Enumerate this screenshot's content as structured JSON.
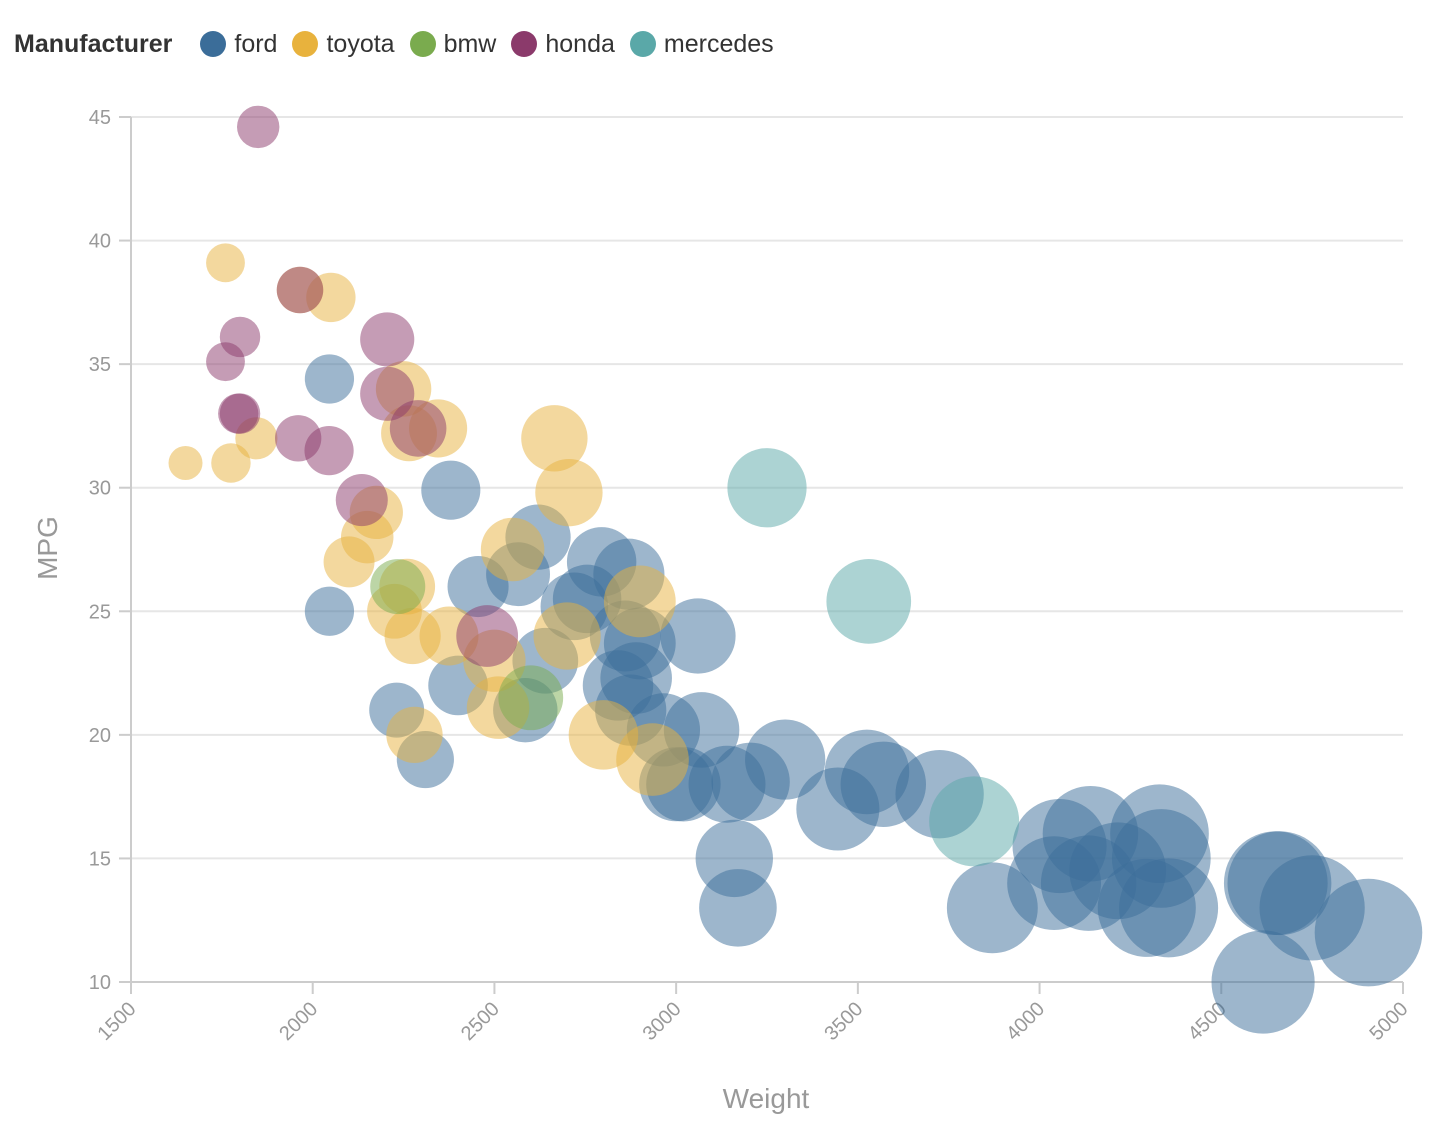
{
  "legend": {
    "title": "Manufacturer"
  },
  "chart_data": {
    "type": "scatter",
    "title": "",
    "xlabel": "Weight",
    "ylabel": "MPG",
    "xlim": [
      1500,
      5000
    ],
    "ylim": [
      10,
      45
    ],
    "x_ticks": [
      1500,
      2000,
      2500,
      3000,
      3500,
      4000,
      4500,
      5000
    ],
    "y_ticks": [
      10,
      15,
      20,
      25,
      30,
      35,
      40,
      45
    ],
    "grid": true,
    "legend_position": "top-left",
    "size_encoding": "weight",
    "series": [
      {
        "name": "ford",
        "color": "#3b6d99",
        "points": [
          [
            2046,
            34.4
          ],
          [
            2046,
            25
          ],
          [
            2231,
            21
          ],
          [
            2310,
            19
          ],
          [
            2380,
            29.9
          ],
          [
            2400,
            22
          ],
          [
            2455,
            26
          ],
          [
            2565,
            26.5
          ],
          [
            2585,
            21
          ],
          [
            2620,
            28
          ],
          [
            2640,
            23
          ],
          [
            2720,
            25.2
          ],
          [
            2755,
            25.5
          ],
          [
            2795,
            27
          ],
          [
            2870,
            26.5
          ],
          [
            2860,
            24
          ],
          [
            2840,
            22
          ],
          [
            2875,
            21
          ],
          [
            2890,
            22.3
          ],
          [
            2900,
            23.7
          ],
          [
            2965,
            20.2
          ],
          [
            3000,
            18
          ],
          [
            3020,
            18
          ],
          [
            3060,
            24
          ],
          [
            3070,
            20.2
          ],
          [
            3140,
            18
          ],
          [
            3160,
            15
          ],
          [
            3170,
            13
          ],
          [
            3205,
            18.1
          ],
          [
            3300,
            19
          ],
          [
            3445,
            17
          ],
          [
            3525,
            18.5
          ],
          [
            3570,
            18
          ],
          [
            3725,
            17.6
          ],
          [
            3870,
            13
          ],
          [
            4040,
            14
          ],
          [
            4055,
            15.5
          ],
          [
            4135,
            14
          ],
          [
            4140,
            16
          ],
          [
            4215,
            14.5
          ],
          [
            4295,
            13
          ],
          [
            4330,
            16
          ],
          [
            4335,
            15
          ],
          [
            4355,
            13
          ],
          [
            4650,
            14
          ],
          [
            4660,
            14
          ],
          [
            4615,
            10
          ],
          [
            4750,
            13
          ],
          [
            4905,
            12
          ]
        ]
      },
      {
        "name": "toyota",
        "color": "#e8b23d",
        "points": [
          [
            1650,
            31
          ],
          [
            1760,
            39.1
          ],
          [
            1775,
            31
          ],
          [
            1845,
            32
          ],
          [
            1965,
            38
          ],
          [
            2050,
            37.7
          ],
          [
            2100,
            27
          ],
          [
            2150,
            28
          ],
          [
            2175,
            29
          ],
          [
            2225,
            25
          ],
          [
            2250,
            34
          ],
          [
            2265,
            32.2
          ],
          [
            2260,
            26
          ],
          [
            2275,
            24
          ],
          [
            2280,
            20
          ],
          [
            2345,
            32.4
          ],
          [
            2375,
            24
          ],
          [
            2500,
            23
          ],
          [
            2510,
            21.1
          ],
          [
            2550,
            27.5
          ],
          [
            2665,
            32
          ],
          [
            2700,
            24
          ],
          [
            2705,
            29.8
          ],
          [
            2800,
            20
          ],
          [
            2900,
            25.4
          ],
          [
            2935,
            19
          ]
        ]
      },
      {
        "name": "bmw",
        "color": "#7aab4e",
        "points": [
          [
            2234,
            26
          ],
          [
            2600,
            21.5
          ]
        ]
      },
      {
        "name": "honda",
        "color": "#8b3a6b",
        "points": [
          [
            1850,
            44.6
          ],
          [
            1760,
            35.1
          ],
          [
            1800,
            36.1
          ],
          [
            1795,
            33
          ],
          [
            1800,
            33
          ],
          [
            1965,
            38
          ],
          [
            1960,
            32
          ],
          [
            2045,
            31.5
          ],
          [
            2135,
            29.5
          ],
          [
            2205,
            36
          ],
          [
            2205,
            33.8
          ],
          [
            2290,
            32.4
          ],
          [
            2480,
            24
          ]
        ]
      },
      {
        "name": "mercedes",
        "color": "#5aa8a8",
        "points": [
          [
            3250,
            30
          ],
          [
            3530,
            25.4
          ],
          [
            3820,
            16.5
          ]
        ]
      }
    ]
  }
}
